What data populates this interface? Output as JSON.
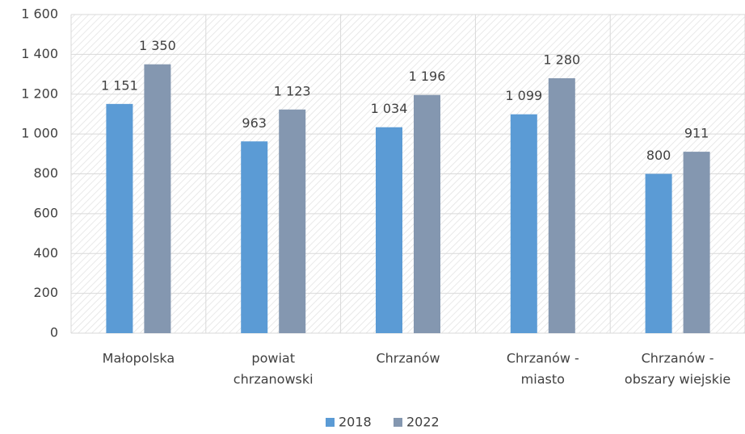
{
  "chart_data": {
    "type": "bar",
    "categories": [
      [
        "Małopolska"
      ],
      [
        "powiat",
        "chrzanowski"
      ],
      [
        "Chrzanów"
      ],
      [
        "Chrzanów -",
        "miasto"
      ],
      [
        "Chrzanów -",
        "obszary wiejskie"
      ]
    ],
    "series": [
      {
        "name": "2018",
        "color": "#5b9bd5",
        "values": [
          1151,
          963,
          1034,
          1099,
          800
        ],
        "value_labels": [
          "1 151",
          "963",
          "1 034",
          "1 099",
          "800"
        ]
      },
      {
        "name": "2022",
        "color": "#8497b0",
        "values": [
          1350,
          1123,
          1196,
          1280,
          911
        ],
        "value_labels": [
          "1 350",
          "1 123",
          "1 196",
          "1 280",
          "911"
        ]
      }
    ],
    "ylim": [
      0,
      1600
    ],
    "yticks": [
      0,
      200,
      400,
      600,
      800,
      {
        "value": 1000,
        "label": "1 000"
      },
      {
        "value": 1200,
        "label": "1 200"
      },
      {
        "value": 1400,
        "label": "1 400"
      },
      {
        "value": 1600,
        "label": "1 600"
      }
    ],
    "grid": true,
    "legend": "bottom"
  }
}
